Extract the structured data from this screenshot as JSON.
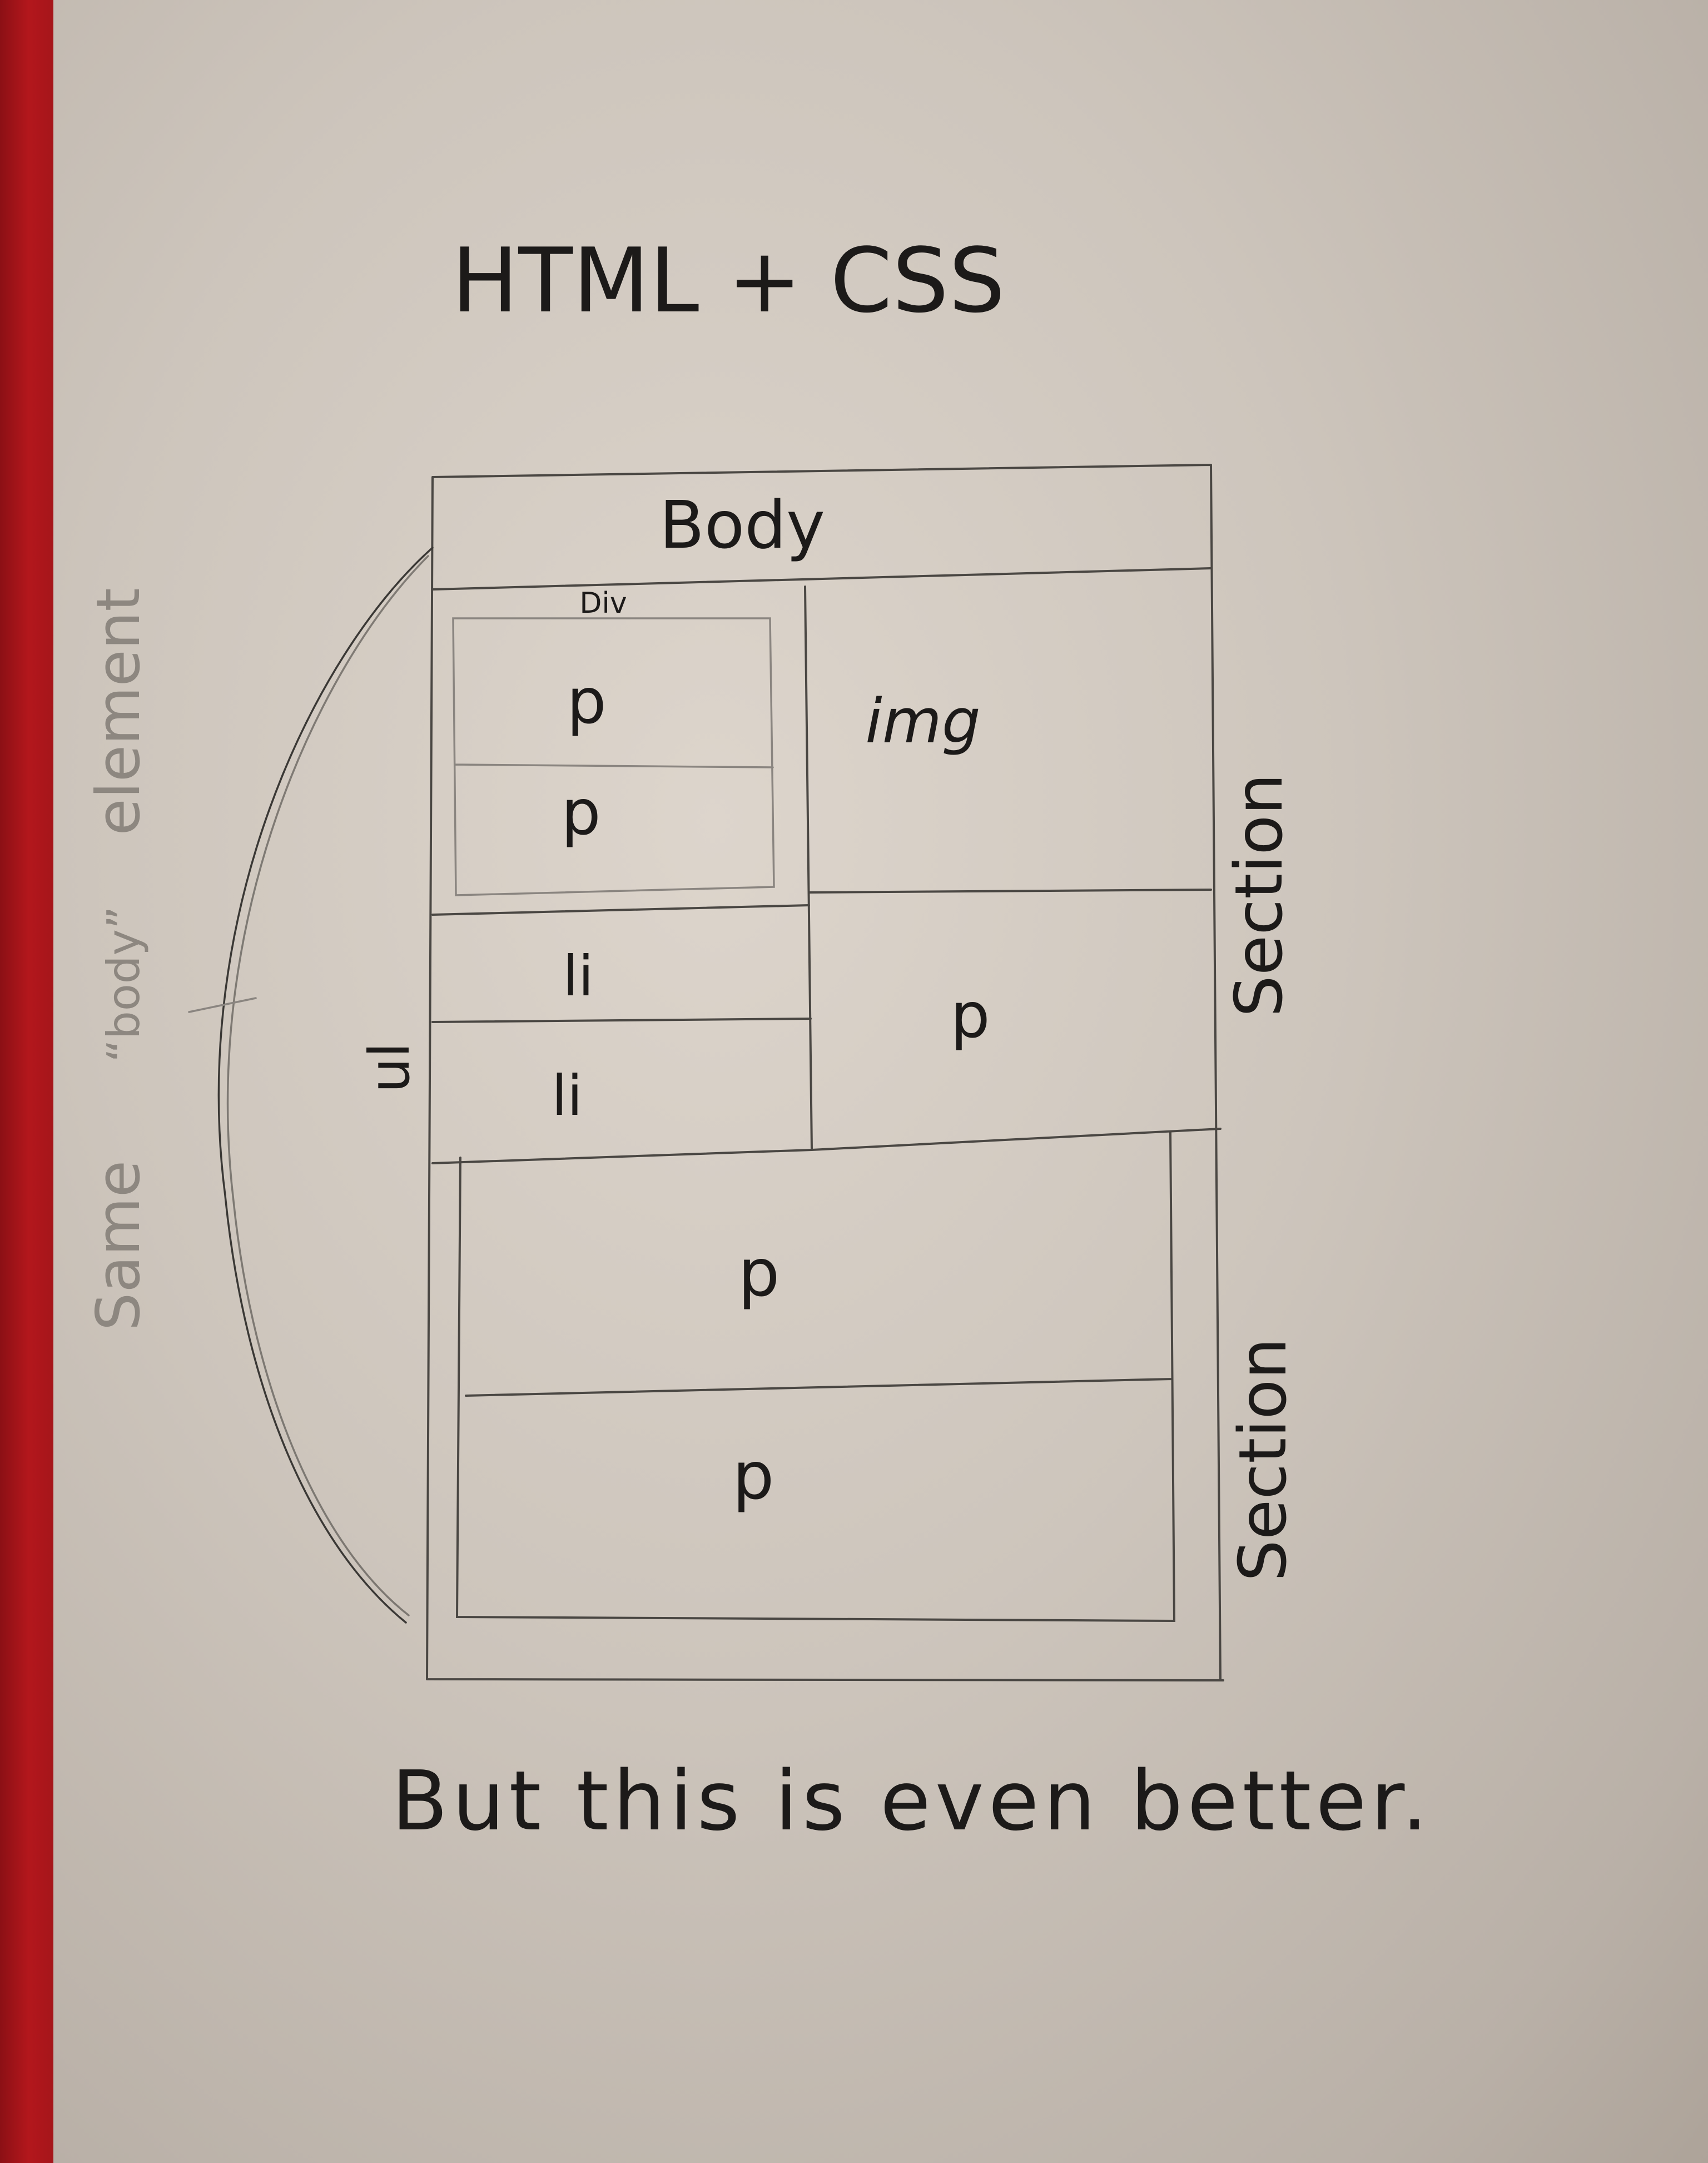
{
  "title": "HTML + CSS",
  "diagram": {
    "body_label": "Body",
    "div_label": "Div",
    "p_top_1": "p",
    "p_top_2": "p",
    "img_label": "img",
    "li_1": "li",
    "li_2": "li",
    "p_right": "p",
    "ul_label": "ul",
    "section_1": "Section",
    "section_2": "Section",
    "p_bottom_1": "p",
    "p_bottom_2": "p"
  },
  "side_note": {
    "word1": "Same",
    "word2": "“body”",
    "word3": "element"
  },
  "caption": "But this is even better.",
  "colors": {
    "paper": "#d6cec5",
    "ink": "#1c1a19",
    "pencil": "#4a4743",
    "red_edge": "#b3171c"
  }
}
